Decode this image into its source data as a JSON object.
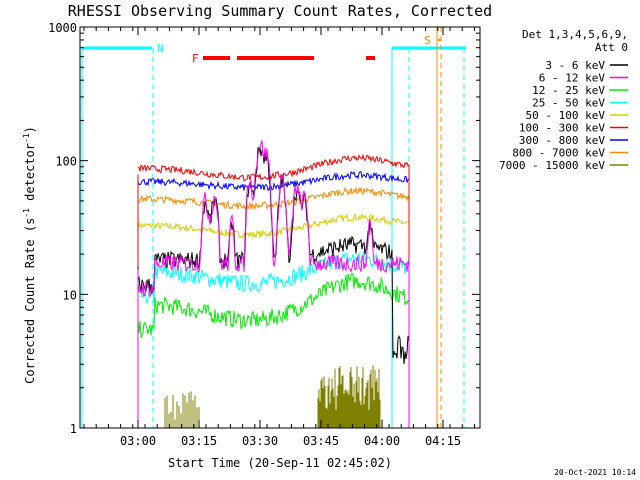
{
  "chart_data": {
    "type": "line",
    "title": "RHESSI Observing Summary Count Rates, Corrected",
    "xlabel": "Start Time (20-Sep-11 02:45:02)",
    "ylabel_main": "Corrected Count Rate (s",
    "ylabel_sup1": "-1",
    "ylabel_mid": " detector",
    "ylabel_sup2": "-1",
    "ylabel_end": ")",
    "y_scale": "log",
    "ylim": [
      1,
      1000
    ],
    "x_ticks": [
      "03:00",
      "03:15",
      "03:30",
      "03:45",
      "04:00",
      "04:15"
    ],
    "y_ticks": [
      "1",
      "10",
      "100",
      "1000"
    ],
    "footer_timestamp": "20-Oct-2021 10:14",
    "legend": {
      "header1": "Det 1,3,4,5,6,9,",
      "header2": "Att 0",
      "placement": "right"
    },
    "series": [
      {
        "name": "3 - 6 keV",
        "color": "#000000"
      },
      {
        "name": "6 - 12 keV",
        "color": "#ff00ff"
      },
      {
        "name": "12 - 25 keV",
        "color": "#00ee00"
      },
      {
        "name": "25 - 50 keV",
        "color": "#00ffff"
      },
      {
        "name": "50 - 100 keV",
        "color": "#d4d400"
      },
      {
        "name": "100 - 300 keV",
        "color": "#ff0000"
      },
      {
        "name": "300 - 800 keV",
        "color": "#0000ff"
      },
      {
        "name": "800 - 7000 keV",
        "color": "#ff8c00"
      },
      {
        "name": "7000 - 15000 keV",
        "color": "#808000"
      }
    ],
    "flags": {
      "night_label": "N",
      "flare_label": "F",
      "saa_label": "S",
      "night_color": "#00ffff",
      "flare_color": "#ff0000",
      "saa_color": "#ff8c00"
    }
  }
}
